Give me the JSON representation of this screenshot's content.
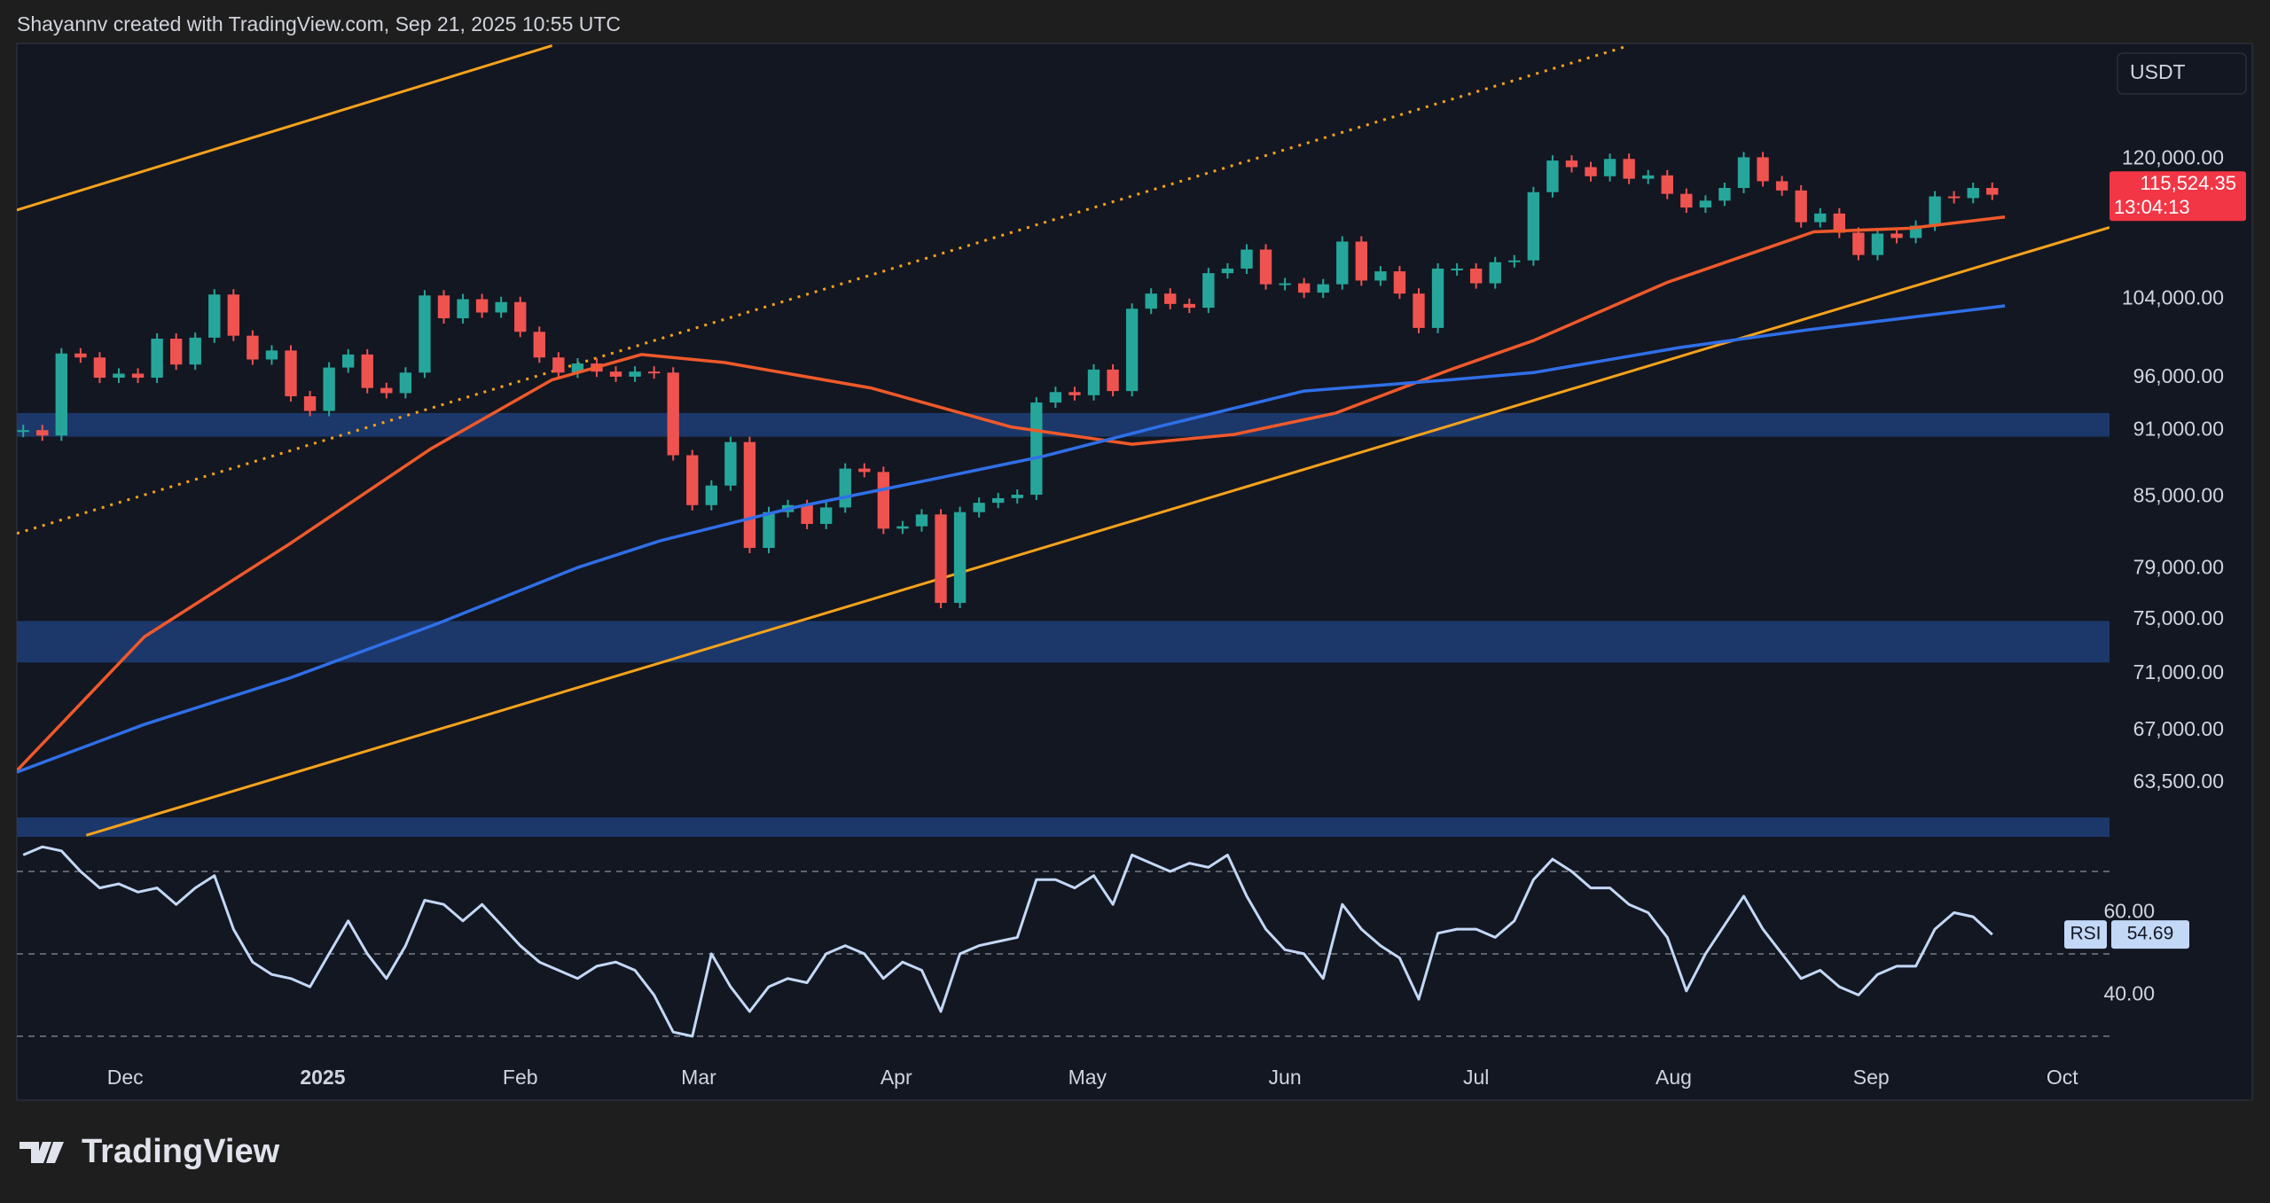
{
  "header": "Shayannv created with TradingView.com, Sep 21, 2025 10:55 UTC",
  "footer": {
    "brand": "TradingView"
  },
  "chart_data": {
    "type": "candlestick",
    "currency": "USDT",
    "up_color": "#26a69a",
    "down_color": "#ef5350",
    "log_scale": true,
    "xlim": [
      0,
      328.4
    ],
    "xticks": [
      {
        "value": 17,
        "label": "Dec"
      },
      {
        "value": 48,
        "label": "2025"
      },
      {
        "value": 79,
        "label": "Feb"
      },
      {
        "value": 107,
        "label": "Mar"
      },
      {
        "value": 138,
        "label": "Apr"
      },
      {
        "value": 168,
        "label": "May"
      },
      {
        "value": 199,
        "label": "Jun"
      },
      {
        "value": 229,
        "label": "Jul"
      },
      {
        "value": 260,
        "label": "Aug"
      },
      {
        "value": 291,
        "label": "Sep"
      },
      {
        "value": 321,
        "label": "Oct"
      }
    ],
    "ylim": [
      60100,
      135000
    ],
    "yticks": [
      {
        "value": 120000,
        "label": "120,000.00"
      },
      {
        "value": 104000,
        "label": "104,000.00"
      },
      {
        "value": 96000,
        "label": "96,000.00"
      },
      {
        "value": 91000,
        "label": "91,000.00"
      },
      {
        "value": 85000,
        "label": "85,000.00"
      },
      {
        "value": 79000,
        "label": "79,000.00"
      },
      {
        "value": 75000,
        "label": "75,000.00"
      },
      {
        "value": 71000,
        "label": "71,000.00"
      },
      {
        "value": 67000,
        "label": "67,000.00"
      },
      {
        "value": 63500,
        "label": "63,500.00"
      }
    ],
    "x": [
      1,
      4,
      7,
      10,
      13,
      16,
      19,
      22,
      25,
      28,
      31,
      34,
      37,
      40,
      43,
      46,
      49,
      52,
      55,
      58,
      61,
      64,
      67,
      70,
      73,
      76,
      79,
      82,
      85,
      88,
      91,
      94,
      97,
      100,
      103,
      106,
      109,
      112,
      115,
      118,
      121,
      124,
      127,
      130,
      133,
      136,
      139,
      142,
      145,
      148,
      151,
      154,
      157,
      160,
      163,
      166,
      169,
      172,
      175,
      178,
      181,
      184,
      187,
      190,
      193,
      196,
      199,
      202,
      205,
      208,
      211,
      214,
      217,
      220,
      223,
      226,
      229,
      232,
      235,
      238,
      241,
      244,
      247,
      250,
      253,
      256,
      259,
      262,
      265,
      268,
      271,
      274,
      277,
      280,
      283,
      286,
      289,
      292,
      295,
      298,
      301,
      304,
      307,
      310
    ],
    "values": [
      91000,
      90500,
      98400,
      98000,
      96000,
      96400,
      96000,
      99900,
      97300,
      100000,
      104500,
      100200,
      97800,
      98700,
      94200,
      92800,
      97000,
      98300,
      95000,
      94500,
      96500,
      104400,
      102000,
      104000,
      102600,
      103700,
      100600,
      98000,
      96500,
      97400,
      96600,
      96100,
      96600,
      96500,
      88700,
      84300,
      86000,
      89900,
      80700,
      83700,
      84300,
      82700,
      84100,
      87500,
      87200,
      82300,
      82500,
      83500,
      76300,
      83700,
      84500,
      84900,
      85200,
      93600,
      94600,
      94300,
      96800,
      94700,
      103000,
      104600,
      103500,
      103100,
      106800,
      107300,
      109400,
      105600,
      105700,
      104700,
      105600,
      110300,
      106000,
      107000,
      104600,
      101000,
      107300,
      107300,
      105700,
      108000,
      108200,
      116000,
      119800,
      119000,
      117900,
      120000,
      117600,
      118000,
      115800,
      114200,
      115000,
      116500,
      120200,
      117300,
      116200,
      112500,
      113500,
      111300,
      108800,
      111200,
      110700,
      112100,
      115500,
      115300,
      116500,
      115700
    ],
    "moving_averages": [
      {
        "color": "#f0592a",
        "x": [
          0,
          20,
          43,
          65,
          84,
          98,
          111,
          134,
          156,
          175,
          191,
          207,
          225,
          238,
          259,
          282,
          297,
          312
        ],
        "values": [
          64300,
          73700,
          81100,
          89300,
          95800,
          98300,
          97500,
          95000,
          91300,
          89700,
          90600,
          92600,
          96800,
          99700,
          105800,
          111400,
          111800,
          113100
        ]
      },
      {
        "color": "#2f6fe8",
        "x": [
          0,
          20,
          43,
          66,
          88,
          101,
          122,
          145,
          161,
          179,
          202,
          225,
          238,
          261,
          281,
          312
        ],
        "values": [
          64200,
          67400,
          70700,
          74700,
          79100,
          81300,
          84100,
          86700,
          88600,
          91300,
          94700,
          95800,
          96500,
          99000,
          100800,
          103300
        ]
      }
    ],
    "trendlines": [
      {
        "color": "#f7a21b",
        "dashed": false,
        "x": [
          0,
          84
        ],
        "values": [
          113900,
          134700
        ]
      },
      {
        "color": "#f7a21b",
        "dashed": true,
        "x": [
          0,
          253
        ],
        "values": [
          81900,
          134700
        ]
      },
      {
        "color": "#f7a21b",
        "dashed": false,
        "x": [
          10.9,
          328.4
        ],
        "values": [
          60200,
          111900
        ]
      }
    ],
    "zones": [
      {
        "color": "#1e3e78",
        "from": 90400,
        "to": 92600
      },
      {
        "color": "#1e3e78",
        "from": 71800,
        "to": 74900
      },
      {
        "color": "#1e3e78",
        "from": 60100,
        "to": 61300
      }
    ],
    "last_price": {
      "value": 115524.35,
      "label": "115,524.35",
      "countdown": "13:04:13",
      "color": "#f23645"
    },
    "rsi": {
      "label": "RSI",
      "color": "#c3d8f7",
      "ylim": [
        23.3,
        78.4
      ],
      "yticks": [
        {
          "value": 60,
          "label": "60.00"
        },
        {
          "value": 40,
          "label": "40.00"
        }
      ],
      "levels": [
        70,
        50,
        30
      ],
      "values": [
        74,
        76,
        75,
        70,
        66,
        67,
        65,
        66,
        62,
        66,
        69,
        56,
        48,
        45,
        44,
        42,
        50,
        58,
        50,
        44,
        52,
        63,
        62,
        58,
        62,
        57,
        52,
        48,
        46,
        44,
        47,
        48,
        46,
        40,
        31,
        30,
        50,
        42,
        36,
        42,
        44,
        43,
        50,
        52,
        50,
        44,
        48,
        46,
        36,
        50,
        52,
        53,
        54,
        68,
        68,
        66,
        69,
        62,
        74,
        72,
        70,
        72,
        71,
        74,
        64,
        56,
        51,
        50,
        44,
        62,
        56,
        52,
        49,
        39,
        55,
        56,
        56,
        54,
        58,
        68,
        73,
        70,
        66,
        66,
        62,
        60,
        54,
        41,
        50,
        57,
        64,
        56,
        50,
        44,
        46,
        42,
        40,
        45,
        47,
        47,
        56,
        60,
        59,
        54.69
      ]
    }
  }
}
